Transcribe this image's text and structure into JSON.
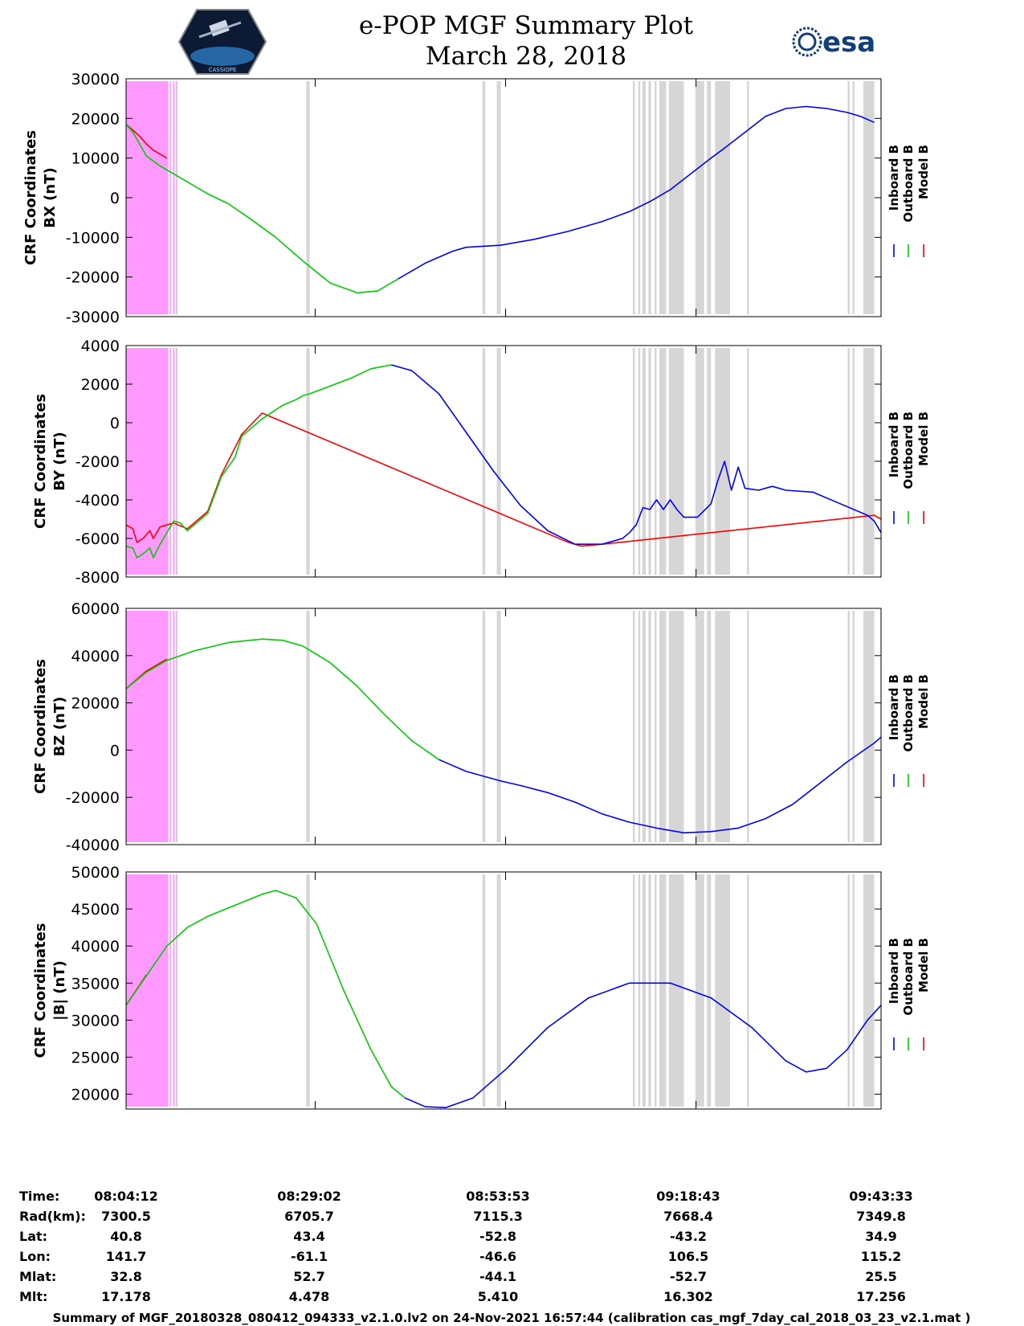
{
  "header": {
    "title_line1": "e-POP MGF Summary Plot",
    "title_line2": "March 28, 2018",
    "left_logo_text": "CASSIOPE",
    "right_logo_text": "esa"
  },
  "legend": [
    "Inboard B",
    "Outboard B",
    "Model B"
  ],
  "colors": {
    "inboard": "#0000ff",
    "outboard": "#00cc00",
    "model": "#ff0000",
    "magenta": "#ff99ff",
    "gray": "#d6d6d6"
  },
  "chart_data": [
    {
      "type": "line",
      "ylabel_line1": "CRF Coordinates",
      "ylabel_line2": "BX (nT)",
      "ylim": [
        -30000,
        30000
      ],
      "yticks": [
        "30000",
        "20000",
        "10000",
        "0",
        "-10000",
        "-20000",
        "-30000"
      ],
      "ytick_values": [
        30000,
        20000,
        10000,
        0,
        -10000,
        -20000,
        -30000
      ],
      "series": [
        {
          "name": "Outboard B",
          "values": [
            [
              0,
              18500
            ],
            [
              1,
              16500
            ],
            [
              2,
              13500
            ],
            [
              3,
              10500
            ],
            [
              5,
              8000
            ],
            [
              8,
              5000
            ],
            [
              12,
              1000
            ],
            [
              15,
              -1500
            ],
            [
              18,
              -5000
            ],
            [
              22,
              -10000
            ],
            [
              26,
              -16000
            ],
            [
              30,
              -21500
            ],
            [
              34,
              -24000
            ],
            [
              37,
              -23500
            ],
            [
              40,
              -20500
            ]
          ]
        },
        {
          "name": "Inboard B",
          "values": [
            [
              40,
              -20500
            ],
            [
              44,
              -16500
            ],
            [
              48,
              -13500
            ],
            [
              50,
              -12500
            ],
            [
              52,
              -12300
            ],
            [
              55,
              -12000
            ],
            [
              60,
              -10500
            ],
            [
              65,
              -8500
            ],
            [
              70,
              -6000
            ],
            [
              74,
              -3500
            ],
            [
              77,
              -1000
            ],
            [
              80,
              2000
            ],
            [
              83,
              6000
            ],
            [
              86,
              10000
            ],
            [
              88,
              12500
            ],
            [
              91,
              16500
            ],
            [
              94,
              20500
            ],
            [
              97,
              22500
            ],
            [
              100,
              23000
            ],
            [
              103,
              22500
            ],
            [
              106,
              21500
            ],
            [
              108,
              20500
            ],
            [
              110,
              19000
            ]
          ]
        },
        {
          "name": "Model B",
          "values": [
            [
              0,
              18500
            ],
            [
              2,
              15500
            ],
            [
              3,
              13500
            ],
            [
              4,
              12000
            ],
            [
              6,
              10000
            ]
          ]
        }
      ]
    },
    {
      "type": "line",
      "ylabel_line1": "CRF Coordinates",
      "ylabel_line2": "BY (nT)",
      "ylim": [
        -8000,
        4000
      ],
      "yticks": [
        "4000",
        "2000",
        "0",
        "-2000",
        "-4000",
        "-6000",
        "-8000"
      ],
      "ytick_values": [
        4000,
        2000,
        0,
        -2000,
        -4000,
        -6000,
        -8000
      ],
      "series": [
        {
          "name": "Outboard B",
          "values": [
            [
              0,
              -6400
            ],
            [
              1,
              -6500
            ],
            [
              1.6,
              -7000
            ],
            [
              2.5,
              -6800
            ],
            [
              3.5,
              -6500
            ],
            [
              4,
              -7000
            ],
            [
              5,
              -6300
            ],
            [
              7,
              -5100
            ],
            [
              8,
              -5200
            ],
            [
              9,
              -5600
            ],
            [
              12,
              -4700
            ],
            [
              14,
              -2800
            ],
            [
              16,
              -1800
            ],
            [
              17,
              -700
            ],
            [
              20,
              200
            ],
            [
              23,
              900
            ],
            [
              25,
              1200
            ],
            [
              26,
              1400
            ],
            [
              27,
              1500
            ],
            [
              30,
              1900
            ],
            [
              33,
              2300
            ],
            [
              36,
              2800
            ],
            [
              39,
              3000
            ]
          ]
        },
        {
          "name": "Inboard B",
          "values": [
            [
              39,
              3000
            ],
            [
              42,
              2700
            ],
            [
              46,
              1500
            ],
            [
              50,
              -500
            ],
            [
              54,
              -2500
            ],
            [
              58,
              -4300
            ],
            [
              62,
              -5600
            ],
            [
              66,
              -6300
            ],
            [
              70,
              -6300
            ],
            [
              73,
              -6000
            ],
            [
              74,
              -5700
            ],
            [
              75,
              -5300
            ],
            [
              76,
              -4400
            ],
            [
              77,
              -4500
            ],
            [
              78,
              -4000
            ],
            [
              79,
              -4500
            ],
            [
              80,
              -4000
            ],
            [
              81,
              -4500
            ],
            [
              82,
              -4900
            ],
            [
              84,
              -4900
            ],
            [
              86,
              -4200
            ],
            [
              87,
              -3000
            ],
            [
              88,
              -2000
            ],
            [
              89,
              -3500
            ],
            [
              90,
              -2300
            ],
            [
              91,
              -3400
            ],
            [
              93,
              -3500
            ],
            [
              95,
              -3300
            ],
            [
              97,
              -3500
            ],
            [
              101,
              -3600
            ],
            [
              105,
              -4200
            ],
            [
              109,
              -4800
            ],
            [
              110,
              -5100
            ],
            [
              111,
              -5700
            ]
          ]
        },
        {
          "name": "Model B",
          "values": [
            [
              0,
              -5300
            ],
            [
              1,
              -5500
            ],
            [
              1.6,
              -6200
            ],
            [
              2.5,
              -6000
            ],
            [
              3.5,
              -5600
            ],
            [
              4,
              -6000
            ],
            [
              5,
              -5400
            ],
            [
              6,
              -5300
            ],
            [
              7,
              -5200
            ],
            [
              9,
              -5500
            ],
            [
              12,
              -4600
            ],
            [
              14,
              -2700
            ],
            [
              17,
              -600
            ],
            [
              20,
              500
            ],
            [
              65,
              -6200
            ],
            [
              67,
              -6400
            ],
            [
              70,
              -6300
            ],
            [
              110,
              -4800
            ],
            [
              111,
              -5000
            ]
          ]
        }
      ]
    },
    {
      "type": "line",
      "ylabel_line1": "CRF Coordinates",
      "ylabel_line2": "BZ (nT)",
      "ylim": [
        -40000,
        60000
      ],
      "yticks": [
        "60000",
        "40000",
        "20000",
        "0",
        "-20000",
        "-40000"
      ],
      "ytick_values": [
        60000,
        40000,
        20000,
        0,
        -20000,
        -40000
      ],
      "series": [
        {
          "name": "Outboard B",
          "values": [
            [
              0,
              26000
            ],
            [
              3,
              33000
            ],
            [
              6,
              38000
            ],
            [
              10,
              42000
            ],
            [
              15,
              45500
            ],
            [
              20,
              47000
            ],
            [
              23,
              46500
            ],
            [
              26,
              44000
            ],
            [
              30,
              37000
            ],
            [
              34,
              27000
            ],
            [
              38,
              15000
            ],
            [
              42,
              4000
            ],
            [
              44,
              0
            ],
            [
              46,
              -4000
            ]
          ]
        },
        {
          "name": "Inboard B",
          "values": [
            [
              46,
              -4000
            ],
            [
              50,
              -9000
            ],
            [
              55,
              -13000
            ],
            [
              58,
              -15000
            ],
            [
              62,
              -18000
            ],
            [
              66,
              -22000
            ],
            [
              70,
              -27000
            ],
            [
              74,
              -30500
            ],
            [
              78,
              -33000
            ],
            [
              82,
              -35000
            ],
            [
              86,
              -34500
            ],
            [
              90,
              -33000
            ],
            [
              94,
              -29000
            ],
            [
              98,
              -23000
            ],
            [
              102,
              -14000
            ],
            [
              106,
              -5000
            ],
            [
              110,
              3000
            ],
            [
              111,
              5500
            ]
          ]
        },
        {
          "name": "Model B",
          "values": [
            [
              0,
              26000
            ],
            [
              3,
              33500
            ],
            [
              6,
              38500
            ]
          ]
        }
      ]
    },
    {
      "type": "line",
      "ylabel_line1": "CRF Coordinates",
      "ylabel_line2": "|B| (nT)",
      "ylim": [
        18000,
        50000
      ],
      "yticks": [
        "50000",
        "45000",
        "40000",
        "35000",
        "30000",
        "25000",
        "20000"
      ],
      "ytick_values": [
        50000,
        45000,
        40000,
        35000,
        30000,
        25000,
        20000
      ],
      "series": [
        {
          "name": "Outboard B",
          "values": [
            [
              0,
              32000
            ],
            [
              3,
              36000
            ],
            [
              6,
              40000
            ],
            [
              9,
              42500
            ],
            [
              12,
              44000
            ],
            [
              16,
              45500
            ],
            [
              20,
              47000
            ],
            [
              22,
              47500
            ],
            [
              25,
              46500
            ],
            [
              28,
              43000
            ],
            [
              32,
              34000
            ],
            [
              36,
              26000
            ],
            [
              39,
              21000
            ],
            [
              41,
              19500
            ]
          ]
        },
        {
          "name": "Inboard B",
          "values": [
            [
              41,
              19500
            ],
            [
              44,
              18300
            ],
            [
              47,
              18200
            ],
            [
              51,
              19500
            ],
            [
              56,
              23500
            ],
            [
              62,
              29000
            ],
            [
              68,
              33000
            ],
            [
              74,
              35000
            ],
            [
              80,
              35000
            ],
            [
              86,
              33000
            ],
            [
              92,
              29000
            ],
            [
              97,
              24500
            ],
            [
              100,
              23000
            ],
            [
              103,
              23500
            ],
            [
              106,
              26000
            ],
            [
              109,
              30000
            ],
            [
              111,
              32000
            ]
          ]
        },
        {
          "name": "Model B",
          "values": [
            [
              0,
              32000
            ],
            [
              3,
              36100
            ]
          ]
        }
      ]
    }
  ],
  "bands": {
    "magenta": [
      [
        0,
        6.2
      ],
      [
        6.4,
        6.6
      ],
      [
        6.9,
        7.1
      ],
      [
        7.3,
        7.5
      ]
    ],
    "gray": [
      [
        26.5,
        27
      ],
      [
        52.4,
        52.8
      ],
      [
        54.5,
        55.1
      ],
      [
        74.5,
        74.8
      ],
      [
        75.3,
        75.6
      ],
      [
        75.9,
        76.4
      ],
      [
        76.8,
        77.2
      ],
      [
        77.7,
        78
      ],
      [
        78.4,
        79.4
      ],
      [
        79.8,
        82
      ],
      [
        83.7,
        85
      ],
      [
        85.4,
        86
      ],
      [
        86.6,
        88.8
      ],
      [
        91.3,
        91.6
      ],
      [
        106.1,
        106.4
      ],
      [
        106.8,
        107.1
      ],
      [
        108.4,
        110
      ]
    ]
  },
  "xaxis": {
    "x_tick_positions": [
      27.8,
      55.8,
      83.8
    ]
  },
  "info_table": {
    "labels": [
      "Time:",
      "Rad(km):",
      "Lat:",
      "Lon:",
      "Mlat:",
      "Mlt:"
    ],
    "columns": [
      [
        "08:04:12",
        "7300.5",
        "40.8",
        "141.7",
        "32.8",
        "17.178"
      ],
      [
        "08:29:02",
        "6705.7",
        "43.4",
        "-61.1",
        "52.7",
        "4.478"
      ],
      [
        "08:53:53",
        "7115.3",
        "-52.8",
        "-46.6",
        "-44.1",
        "5.410"
      ],
      [
        "09:18:43",
        "7668.4",
        "-43.2",
        "106.5",
        "-52.7",
        "16.302"
      ],
      [
        "09:43:33",
        "7349.8",
        "34.9",
        "115.2",
        "25.5",
        "17.256"
      ]
    ]
  },
  "footer": "Summary of MGF_20180328_080412_094333_v2.1.0.lv2 on 24-Nov-2021 16:57:44 (calibration cas_mgf_7day_cal_2018_03_23_v2.1.mat )"
}
